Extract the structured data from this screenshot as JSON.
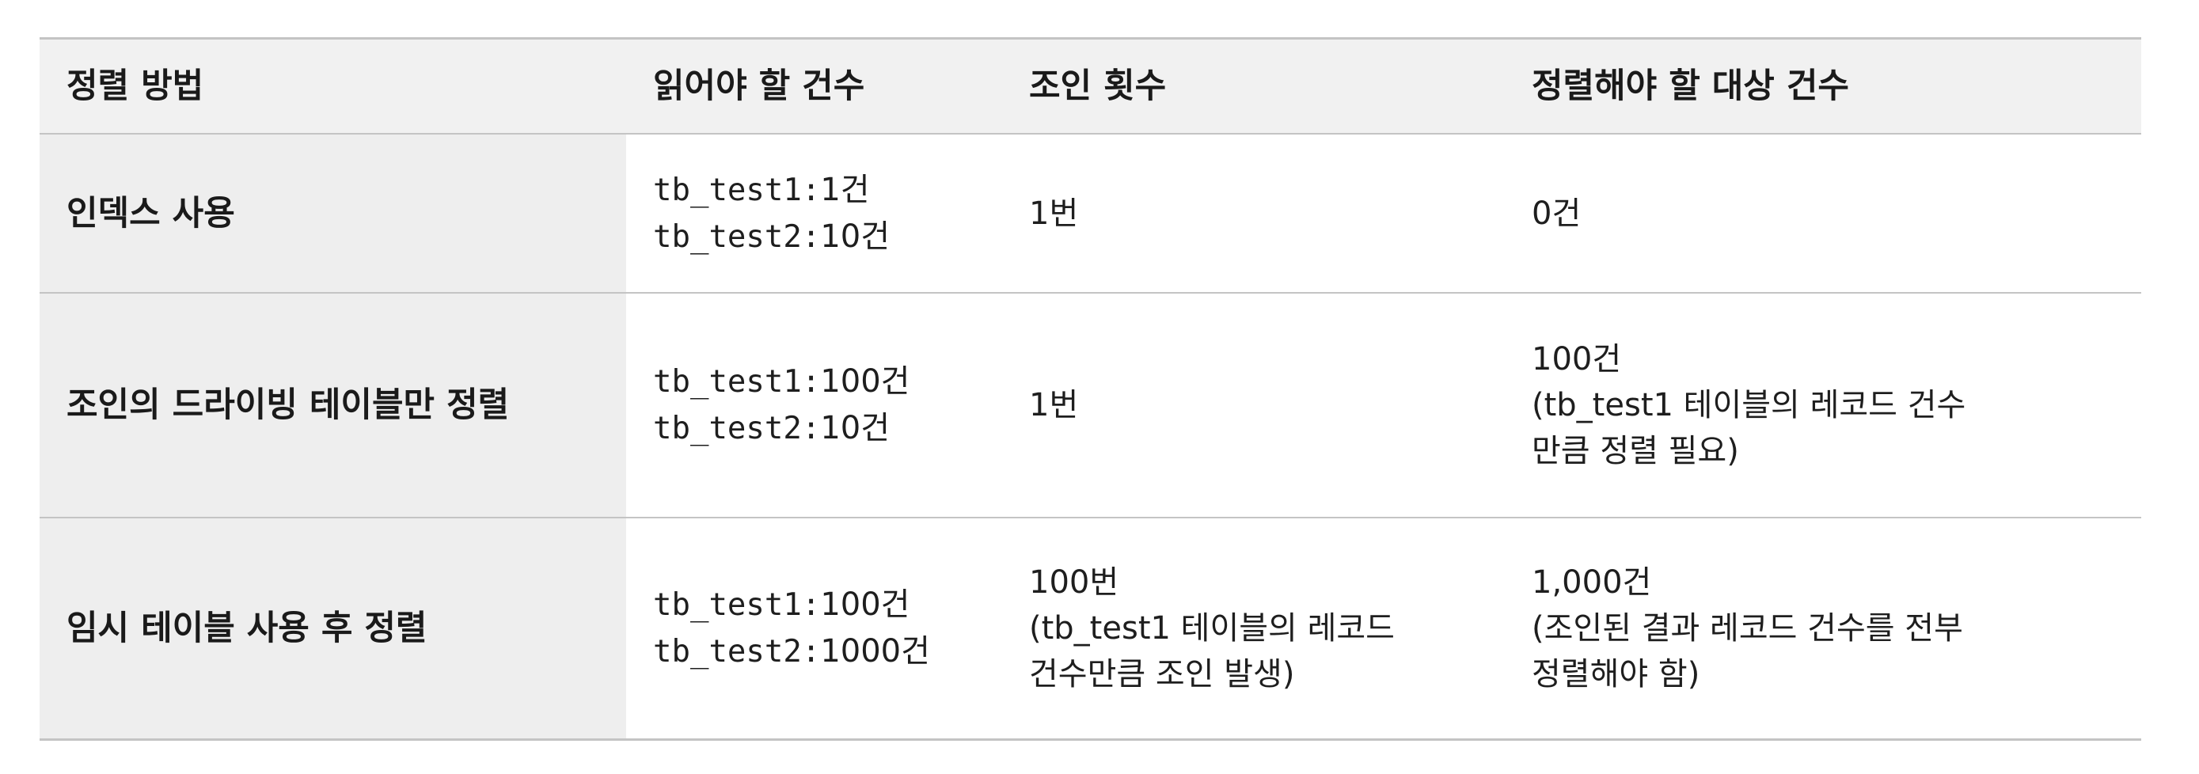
{
  "table": {
    "headers": [
      "정렬 방법",
      "읽어야 할 건수",
      "조인 횟수",
      "정렬해야 할 대상 건수"
    ],
    "rows": [
      {
        "method": "인덱스 사용",
        "reads": [
          {
            "table": "tb_test1:",
            "count": "1건"
          },
          {
            "table": "tb_test2:",
            "count": "10건"
          }
        ],
        "joins": [
          "1번"
        ],
        "sort_targets": [
          "0건"
        ]
      },
      {
        "method": "조인의 드라이빙 테이블만 정렬",
        "reads": [
          {
            "table": "tb_test1:",
            "count": "100건"
          },
          {
            "table": "tb_test2:",
            "count": "10건"
          }
        ],
        "joins": [
          "1번"
        ],
        "sort_targets": [
          "100건",
          "(tb_test1 테이블의 레코드 건수",
          "만큼 정렬 필요)"
        ]
      },
      {
        "method": "임시 테이블 사용 후 정렬",
        "reads": [
          {
            "table": "tb_test1:",
            "count": "100건"
          },
          {
            "table": "tb_test2:",
            "count": "1000건"
          }
        ],
        "joins": [
          "100번",
          "(tb_test1 테이블의 레코드",
          "건수만큼 조인 발생)"
        ],
        "sort_targets": [
          "1,000건",
          "(조인된 결과 레코드 건수를 전부",
          "정렬해야 함)"
        ]
      }
    ]
  }
}
